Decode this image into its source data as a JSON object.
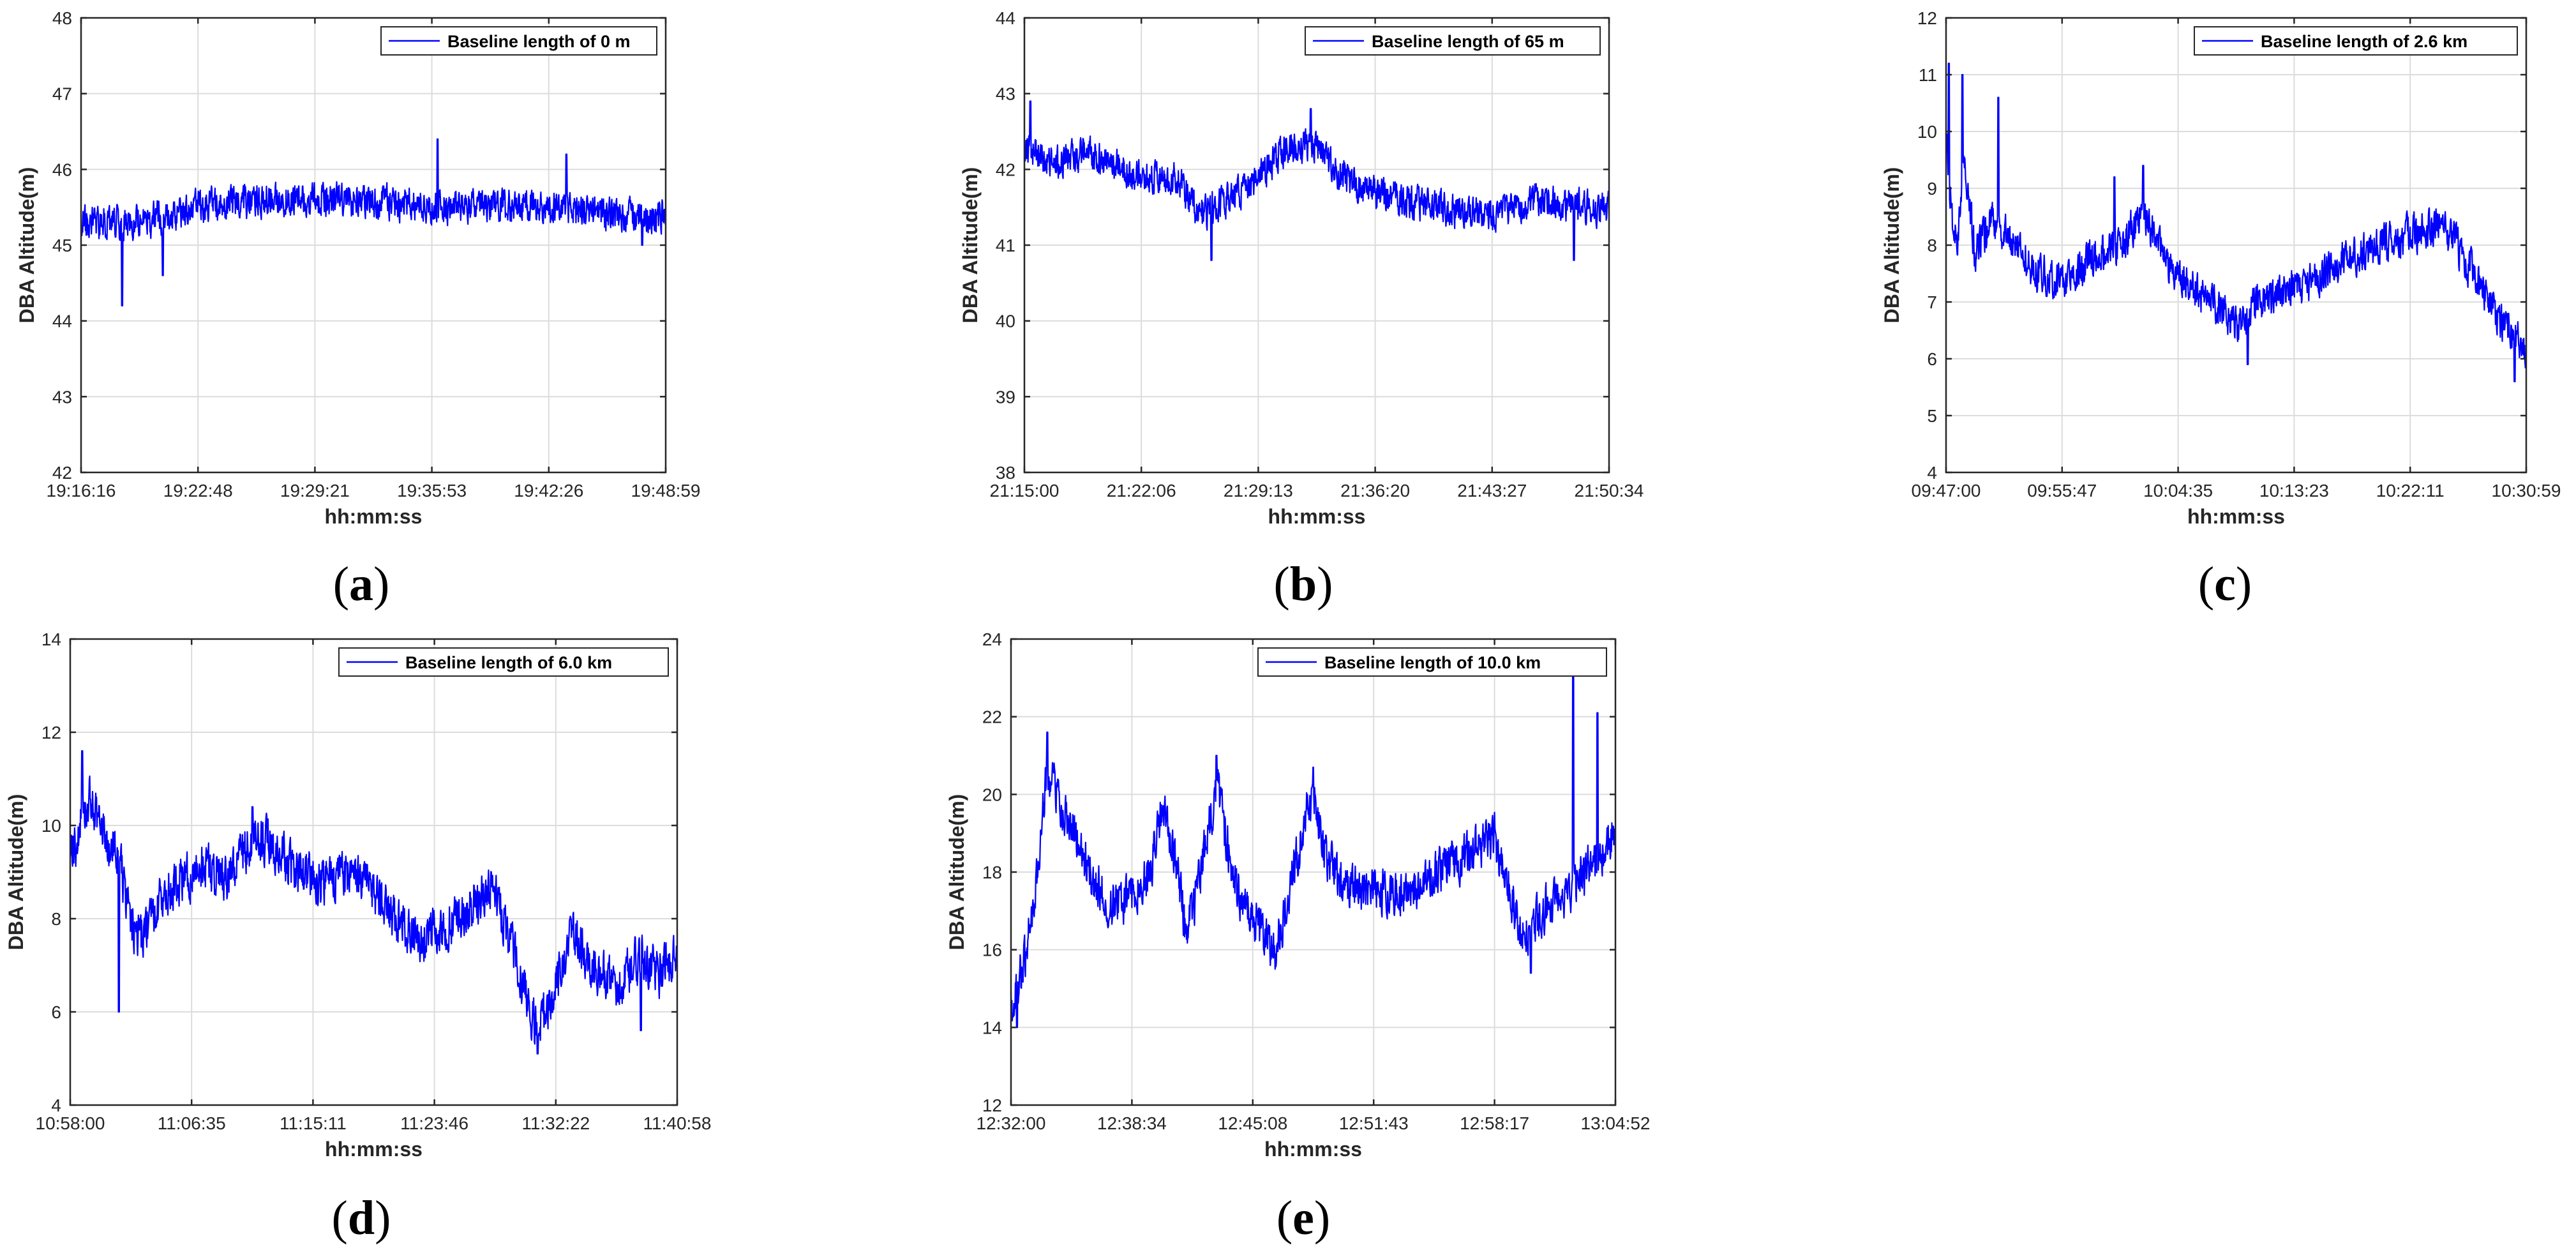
{
  "chart_data": [
    {
      "type": "line",
      "panel": "a",
      "xlabel": "hh:mm:ss",
      "ylabel": "DBA Altitude(m)",
      "ylim": [
        42,
        48
      ],
      "yticks": [
        "42",
        "43",
        "44",
        "45",
        "46",
        "47",
        "48"
      ],
      "xticks": [
        "19:16:16",
        "19:22:48",
        "19:29:21",
        "19:35:53",
        "19:42:26",
        "19:48:59"
      ],
      "legend": "top-right",
      "grid": true,
      "series": [
        {
          "name": "Baseline length of 0 m",
          "color": "#0000ff",
          "profile": [
            [
              0,
              45.3
            ],
            [
              0.1,
              45.3
            ],
            [
              0.2,
              45.5
            ],
            [
              0.3,
              45.6
            ],
            [
              0.4,
              45.6
            ],
            [
              0.5,
              45.6
            ],
            [
              0.6,
              45.5
            ],
            [
              0.7,
              45.5
            ],
            [
              0.8,
              45.5
            ],
            [
              0.9,
              45.4
            ],
            [
              1,
              45.4
            ]
          ],
          "noise": 0.3,
          "spikes": [
            [
              0.07,
              44.2
            ],
            [
              0.14,
              44.6
            ],
            [
              0.61,
              46.4
            ],
            [
              0.83,
              46.2
            ],
            [
              0.96,
              45.0
            ]
          ]
        }
      ]
    },
    {
      "type": "line",
      "panel": "b",
      "xlabel": "hh:mm:ss",
      "ylabel": "DBA Altitude(m)",
      "ylim": [
        38,
        44
      ],
      "yticks": [
        "38",
        "39",
        "40",
        "41",
        "42",
        "43",
        "44"
      ],
      "xticks": [
        "21:15:00",
        "21:22:06",
        "21:29:13",
        "21:36:20",
        "21:43:27",
        "21:50:34"
      ],
      "legend": "top-right",
      "grid": true,
      "series": [
        {
          "name": "Baseline length of 65 m",
          "color": "#0000ff",
          "profile": [
            [
              0,
              42.3
            ],
            [
              0.05,
              42.1
            ],
            [
              0.12,
              42.2
            ],
            [
              0.2,
              41.9
            ],
            [
              0.26,
              41.9
            ],
            [
              0.3,
              41.4
            ],
            [
              0.35,
              41.6
            ],
            [
              0.4,
              41.9
            ],
            [
              0.45,
              42.3
            ],
            [
              0.5,
              42.3
            ],
            [
              0.53,
              42.0
            ],
            [
              0.58,
              41.7
            ],
            [
              0.7,
              41.5
            ],
            [
              0.8,
              41.4
            ],
            [
              0.88,
              41.6
            ],
            [
              0.95,
              41.5
            ],
            [
              1,
              41.5
            ]
          ],
          "noise": 0.3,
          "spikes": [
            [
              0.01,
              42.9
            ],
            [
              0.32,
              40.8
            ],
            [
              0.49,
              42.8
            ],
            [
              0.94,
              40.8
            ]
          ]
        }
      ]
    },
    {
      "type": "line",
      "panel": "c",
      "xlabel": "hh:mm:ss",
      "ylabel": "DBA Altitude(m)",
      "ylim": [
        4,
        12
      ],
      "yticks": [
        "4",
        "5",
        "6",
        "7",
        "8",
        "9",
        "10",
        "11",
        "12"
      ],
      "xticks": [
        "09:47:00",
        "09:55:47",
        "10:04:35",
        "10:13:23",
        "10:22:11",
        "10:30:59"
      ],
      "legend": "top-right",
      "grid": true,
      "series": [
        {
          "name": "Baseline length of 2.6 km",
          "color": "#0000ff",
          "profile": [
            [
              0,
              10.0
            ],
            [
              0.01,
              8.5
            ],
            [
              0.02,
              8.0
            ],
            [
              0.03,
              9.5
            ],
            [
              0.05,
              7.9
            ],
            [
              0.08,
              8.4
            ],
            [
              0.12,
              8.0
            ],
            [
              0.15,
              7.6
            ],
            [
              0.2,
              7.3
            ],
            [
              0.25,
              7.8
            ],
            [
              0.3,
              8.0
            ],
            [
              0.34,
              8.6
            ],
            [
              0.38,
              7.7
            ],
            [
              0.42,
              7.3
            ],
            [
              0.46,
              7.0
            ],
            [
              0.5,
              6.6
            ],
            [
              0.54,
              7.0
            ],
            [
              0.58,
              7.2
            ],
            [
              0.62,
              7.3
            ],
            [
              0.66,
              7.6
            ],
            [
              0.7,
              7.8
            ],
            [
              0.75,
              8.0
            ],
            [
              0.8,
              8.2
            ],
            [
              0.85,
              8.3
            ],
            [
              0.88,
              8.0
            ],
            [
              0.92,
              7.3
            ],
            [
              0.96,
              6.6
            ],
            [
              1,
              6.2
            ]
          ],
          "noise": 0.45,
          "spikes": [
            [
              0.005,
              11.2
            ],
            [
              0.028,
              11.0
            ],
            [
              0.09,
              10.6
            ],
            [
              0.29,
              9.2
            ],
            [
              0.34,
              9.4
            ],
            [
              0.52,
              5.9
            ],
            [
              0.98,
              5.6
            ]
          ]
        }
      ]
    },
    {
      "type": "line",
      "panel": "d",
      "xlabel": "hh:mm:ss",
      "ylabel": "DBA Altitude(m)",
      "ylim": [
        4,
        14
      ],
      "yticks": [
        "4",
        "6",
        "8",
        "10",
        "12",
        "14"
      ],
      "xticks": [
        "10:58:00",
        "11:06:35",
        "11:15:11",
        "11:23:46",
        "11:32:22",
        "11:40:58"
      ],
      "legend": "top-right",
      "grid": true,
      "series": [
        {
          "name": "Baseline length of 6.0 km",
          "color": "#0000ff",
          "profile": [
            [
              0,
              9.2
            ],
            [
              0.03,
              10.6
            ],
            [
              0.05,
              10.0
            ],
            [
              0.08,
              9.3
            ],
            [
              0.1,
              7.8
            ],
            [
              0.12,
              7.7
            ],
            [
              0.15,
              8.5
            ],
            [
              0.18,
              8.8
            ],
            [
              0.22,
              9.1
            ],
            [
              0.26,
              8.9
            ],
            [
              0.3,
              9.7
            ],
            [
              0.33,
              9.6
            ],
            [
              0.37,
              9.0
            ],
            [
              0.42,
              8.8
            ],
            [
              0.46,
              8.9
            ],
            [
              0.5,
              8.6
            ],
            [
              0.54,
              8.0
            ],
            [
              0.58,
              7.6
            ],
            [
              0.62,
              7.8
            ],
            [
              0.66,
              8.3
            ],
            [
              0.7,
              8.6
            ],
            [
              0.74,
              6.8
            ],
            [
              0.77,
              5.6
            ],
            [
              0.8,
              6.6
            ],
            [
              0.83,
              7.8
            ],
            [
              0.86,
              7.0
            ],
            [
              0.9,
              6.5
            ],
            [
              0.94,
              7.2
            ],
            [
              0.97,
              6.8
            ],
            [
              1,
              7.3
            ]
          ],
          "noise": 0.7,
          "spikes": [
            [
              0.02,
              11.6
            ],
            [
              0.08,
              6.0
            ],
            [
              0.3,
              10.4
            ],
            [
              0.77,
              5.1
            ],
            [
              0.94,
              5.6
            ]
          ]
        }
      ]
    },
    {
      "type": "line",
      "panel": "e",
      "xlabel": "hh:mm:ss",
      "ylabel": "DBA Altitude(m)",
      "ylim": [
        12,
        24
      ],
      "yticks": [
        "12",
        "14",
        "16",
        "18",
        "20",
        "22",
        "24"
      ],
      "xticks": [
        "12:32:00",
        "12:38:34",
        "12:45:08",
        "12:51:43",
        "12:58:17",
        "13:04:52"
      ],
      "legend": "top-right",
      "grid": true,
      "series": [
        {
          "name": "Baseline length of 10.0 km",
          "color": "#0000ff",
          "profile": [
            [
              0,
              14.5
            ],
            [
              0.02,
              15.5
            ],
            [
              0.04,
              17.5
            ],
            [
              0.06,
              20.8
            ],
            [
              0.08,
              19.8
            ],
            [
              0.1,
              19.3
            ],
            [
              0.13,
              18.0
            ],
            [
              0.16,
              17.2
            ],
            [
              0.2,
              17.3
            ],
            [
              0.23,
              18.0
            ],
            [
              0.25,
              19.6
            ],
            [
              0.27,
              18.6
            ],
            [
              0.29,
              16.4
            ],
            [
              0.31,
              17.6
            ],
            [
              0.34,
              20.3
            ],
            [
              0.36,
              18.5
            ],
            [
              0.38,
              17.2
            ],
            [
              0.41,
              16.6
            ],
            [
              0.44,
              16.0
            ],
            [
              0.46,
              17.5
            ],
            [
              0.5,
              20.2
            ],
            [
              0.52,
              18.4
            ],
            [
              0.55,
              17.6
            ],
            [
              0.6,
              17.6
            ],
            [
              0.64,
              17.4
            ],
            [
              0.68,
              17.8
            ],
            [
              0.72,
              18.2
            ],
            [
              0.76,
              18.4
            ],
            [
              0.8,
              18.9
            ],
            [
              0.83,
              17.3
            ],
            [
              0.85,
              16.3
            ],
            [
              0.88,
              17.0
            ],
            [
              0.91,
              17.3
            ],
            [
              0.93,
              17.6
            ],
            [
              0.96,
              18.2
            ],
            [
              1,
              19.0
            ]
          ],
          "noise": 0.8,
          "spikes": [
            [
              0.01,
              14.0
            ],
            [
              0.06,
              21.6
            ],
            [
              0.34,
              21.0
            ],
            [
              0.5,
              20.7
            ],
            [
              0.86,
              15.4
            ],
            [
              0.93,
              23.6
            ],
            [
              0.97,
              22.1
            ]
          ]
        }
      ]
    }
  ],
  "panel_labels": [
    {
      "open": "(",
      "letter": "a",
      "close": ")"
    },
    {
      "open": "(",
      "letter": "b",
      "close": ")"
    },
    {
      "open": "(",
      "letter": "c",
      "close": ")"
    },
    {
      "open": "(",
      "letter": "d",
      "close": ")"
    },
    {
      "open": "(",
      "letter": "e",
      "close": ")"
    }
  ]
}
